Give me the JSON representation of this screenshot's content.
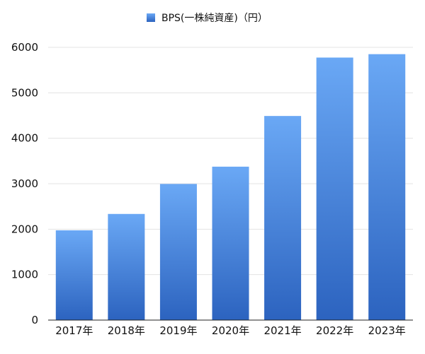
{
  "chart_data": {
    "type": "bar",
    "categories": [
      "2017年",
      "2018年",
      "2019年",
      "2020年",
      "2021年",
      "2022年",
      "2023年"
    ],
    "series": [
      {
        "name": "BPS(一株純資産)（円）",
        "values": [
          1975,
          2335,
          2995,
          3375,
          4490,
          5775,
          5850
        ]
      }
    ],
    "ylim": [
      0,
      6000
    ],
    "yticks": [
      0,
      1000,
      2000,
      3000,
      4000,
      5000,
      6000
    ],
    "grid": true,
    "legend_position": "top-center",
    "bar_color_top": "#6aa8f5",
    "bar_color_bottom": "#2c63bf"
  }
}
